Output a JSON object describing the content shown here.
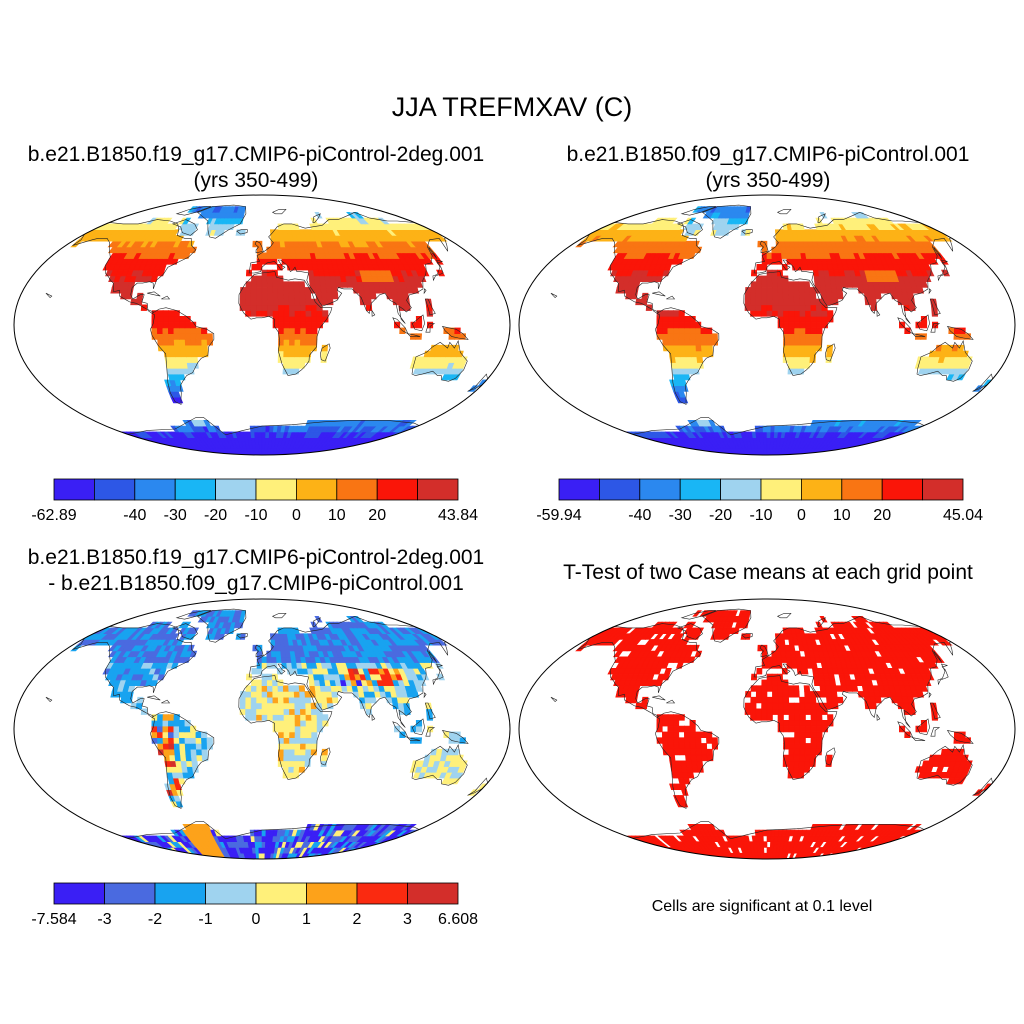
{
  "figure": {
    "title": "JJA TREFMXAV (C)",
    "significance_note": "Cells are significant at 0.1 level"
  },
  "panels": [
    {
      "title_line1": "b.e21.B1850.f19_g17.CMIP6-piControl-2deg.001",
      "title_line2": "(yrs 350-499)",
      "colorbar": {
        "colors": [
          "#3a1ff5",
          "#2d57e6",
          "#2b88ef",
          "#19b6f5",
          "#9fd3ef",
          "#fff07a",
          "#fdb216",
          "#f97513",
          "#fa1508",
          "#d32e2a"
        ],
        "labels": [
          "-62.89",
          "-40",
          "-30",
          "-20",
          "-10",
          "0",
          "10",
          "20",
          "43.84"
        ],
        "label_edges": [
          0,
          2,
          3,
          4,
          5,
          6,
          7,
          8,
          10
        ]
      }
    },
    {
      "title_line1": "b.e21.B1850.f09_g17.CMIP6-piControl.001",
      "title_line2": "(yrs 350-499)",
      "colorbar": {
        "colors": [
          "#3a1ff5",
          "#2d57e6",
          "#2b88ef",
          "#19b6f5",
          "#9fd3ef",
          "#fff07a",
          "#fdb216",
          "#f97513",
          "#fa1508",
          "#d32e2a"
        ],
        "labels": [
          "-59.94",
          "-40",
          "-30",
          "-20",
          "-10",
          "0",
          "10",
          "20",
          "45.04"
        ],
        "label_edges": [
          0,
          2,
          3,
          4,
          5,
          6,
          7,
          8,
          10
        ]
      }
    },
    {
      "title_line1": "b.e21.B1850.f19_g17.CMIP6-piControl-2deg.001",
      "title_line2": "- b.e21.B1850.f09_g17.CMIP6-piControl.001",
      "colorbar": {
        "colors": [
          "#3a1ff5",
          "#4a6ae0",
          "#18a3f0",
          "#9fd3ef",
          "#fff07a",
          "#fda21a",
          "#fa2a10",
          "#d32e2a"
        ],
        "labels": [
          "-7.584",
          "-3",
          "-2",
          "-1",
          "0",
          "1",
          "2",
          "3",
          "6.608"
        ],
        "label_edges": [
          0,
          1,
          2,
          3,
          4,
          5,
          6,
          7,
          8
        ]
      }
    },
    {
      "title_line1": "T-Test of two Case means at each grid point",
      "significant_color": "#fa1508"
    }
  ]
}
